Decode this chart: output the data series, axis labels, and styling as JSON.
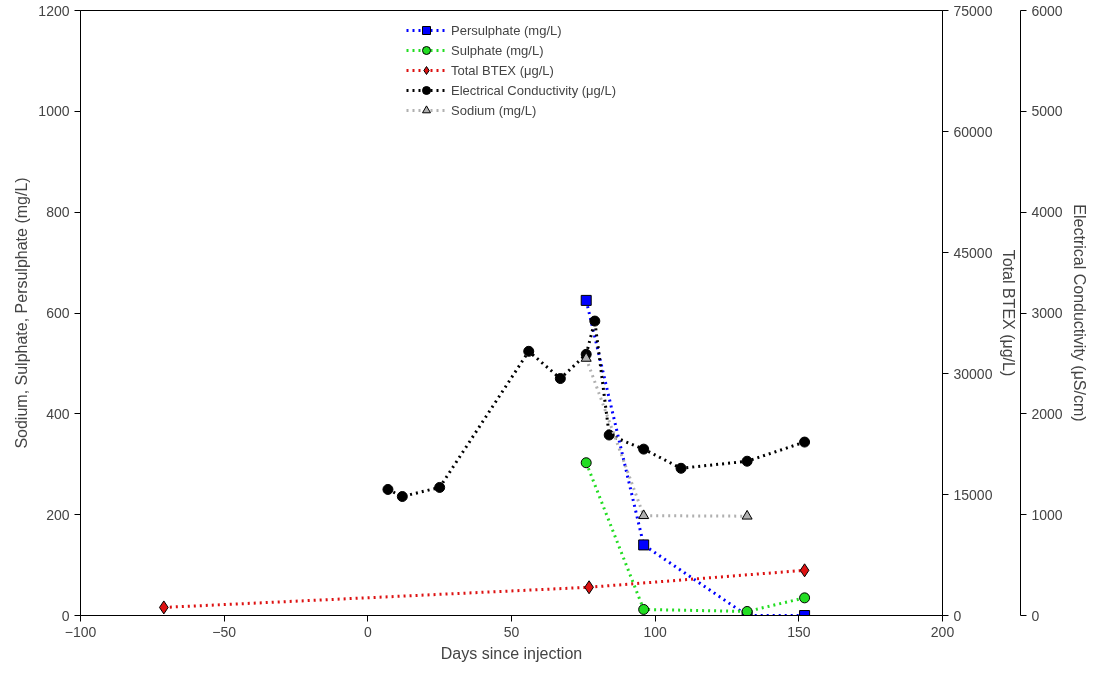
{
  "chart_data": {
    "type": "line",
    "xlabel": "Days since injection",
    "ylabel": "Sodium, Sulphate, Persulphate (mg/L)",
    "y2label": "Total BTEX (μg/L)",
    "y3label": "Electrical Conductivity (μS/cm)",
    "xlim": [
      -100,
      200
    ],
    "xticks": [
      -100,
      -50,
      0,
      50,
      100,
      150,
      200
    ],
    "ylim": [
      0,
      1200
    ],
    "yticks": [
      0,
      200,
      400,
      600,
      800,
      1000,
      1200
    ],
    "y2lim": [
      0,
      75000
    ],
    "y2ticks": [
      0,
      15000,
      30000,
      45000,
      60000,
      75000
    ],
    "y3lim": [
      0,
      6000
    ],
    "y3ticks": [
      0,
      1000,
      2000,
      3000,
      4000,
      5000,
      6000
    ],
    "grid": false,
    "legend": "top",
    "line_style": "dotted",
    "series": [
      {
        "name": "Persulphate (mg/L)",
        "color": "#0000ff",
        "marker": "square",
        "x": [
          76,
          96,
          132,
          152
        ],
        "values": [
          625,
          140,
          0,
          0
        ]
      },
      {
        "name": "Sulphate (mg/L)",
        "color": "#22dd22",
        "marker": "circle",
        "x": [
          76,
          96,
          132,
          152
        ],
        "values": [
          303,
          12,
          8,
          35
        ]
      },
      {
        "name": "Total BTEX (μg/L)",
        "color": "#dd1111",
        "marker": "diamond",
        "axis": "y2",
        "x": [
          -71,
          77,
          152
        ],
        "values": [
          1000,
          3500,
          5600
        ]
      },
      {
        "name": "Electrical Conductivity (μg/L)",
        "color": "#000000",
        "marker": "circle",
        "axis": "y3",
        "x": [
          7,
          12,
          25,
          56,
          67,
          76,
          79,
          84,
          96,
          109,
          132,
          152
        ],
        "values": [
          1250,
          1180,
          1270,
          2620,
          2350,
          2590,
          2920,
          1790,
          1650,
          1460,
          1530,
          1720
        ]
      },
      {
        "name": "Sodium (mg/L)",
        "color": "#b0b0b0",
        "marker": "triangle",
        "x": [
          76,
          96,
          132
        ],
        "values": [
          510,
          198,
          197
        ]
      }
    ]
  }
}
